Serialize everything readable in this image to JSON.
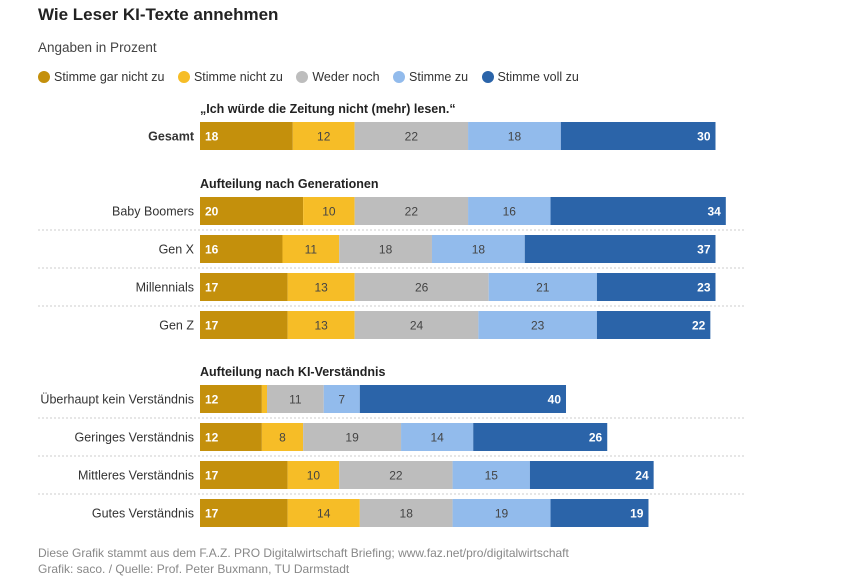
{
  "title": "Wie Leser KI-Texte annehmen",
  "subtitle": "Angaben in Prozent",
  "colors": [
    "#c4900c",
    "#f6bd27",
    "#bdbdbd",
    "#92bbec",
    "#2b64a9"
  ],
  "chart_data": {
    "type": "bar",
    "orientation": "horizontal",
    "stacked": true,
    "legend_position": "top-left",
    "series_names": [
      "Stimme gar nicht zu",
      "Stimme nicht zu",
      "Weder noch",
      "Stimme zu",
      "Stimme voll zu"
    ],
    "groups": [
      {
        "heading": "„Ich würde die Zeitung nicht (mehr) lesen.“",
        "rows": [
          {
            "label": "Gesamt",
            "bold": true,
            "values": [
              18,
              12,
              22,
              18,
              30
            ],
            "labels": [
              "18",
              "12",
              "22",
              "18",
              "30"
            ]
          }
        ]
      },
      {
        "heading": "Aufteilung nach Generationen",
        "rows": [
          {
            "label": "Baby Boomers",
            "values": [
              20,
              10,
              22,
              16,
              34
            ],
            "labels": [
              "20",
              "10",
              "22",
              "16",
              "34"
            ]
          },
          {
            "label": "Gen X",
            "values": [
              16,
              11,
              18,
              18,
              37
            ],
            "labels": [
              "16",
              "11",
              "18",
              "18",
              "37"
            ]
          },
          {
            "label": "Millennials",
            "values": [
              17,
              13,
              26,
              21,
              23
            ],
            "labels": [
              "17",
              "13",
              "26",
              "21",
              "23"
            ]
          },
          {
            "label": "Gen Z",
            "values": [
              17,
              13,
              24,
              23,
              22
            ],
            "labels": [
              "17",
              "13",
              "24",
              "23",
              "22"
            ]
          }
        ]
      },
      {
        "heading": "Aufteilung nach KI-Verständnis",
        "rows": [
          {
            "label": "Überhaupt kein Verständnis",
            "values": [
              12,
              1,
              11,
              7,
              40
            ],
            "labels": [
              "12",
              "",
              "11",
              "7",
              "40"
            ]
          },
          {
            "label": "Geringes Verständnis",
            "values": [
              12,
              8,
              19,
              14,
              26
            ],
            "labels": [
              "12",
              "8",
              "19",
              "14",
              "26"
            ]
          },
          {
            "label": "Mittleres Verständnis",
            "values": [
              17,
              10,
              22,
              15,
              24
            ],
            "labels": [
              "17",
              "10",
              "22",
              "15",
              "24"
            ]
          },
          {
            "label": "Gutes Verständnis",
            "values": [
              17,
              14,
              18,
              19,
              19
            ],
            "labels": [
              "17",
              "14",
              "18",
              "19",
              "19"
            ]
          }
        ]
      }
    ]
  },
  "footer": {
    "line1": "Diese Grafik stammt aus dem F.A.Z. PRO Digitalwirtschaft Briefing; www.faz.net/pro/digitalwirtschaft",
    "line2": "Grafik: saco. / Quelle: Prof. Peter Buxmann, TU Darmstadt"
  }
}
